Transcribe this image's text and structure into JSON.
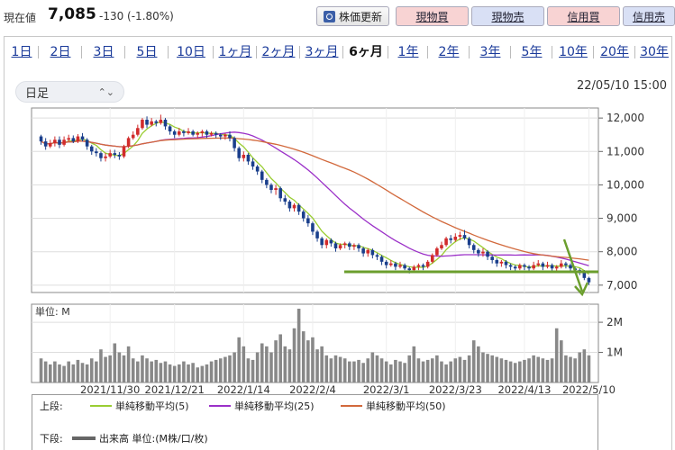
{
  "header": {
    "price_label": "現在値",
    "price_value": "7,085",
    "price_change": "-130 (-1.80%)",
    "refresh_label": "株価更新",
    "buttons": [
      {
        "label": "現物買",
        "kind": "buy"
      },
      {
        "label": "現物売",
        "kind": "sell"
      },
      {
        "label": "信用買",
        "kind": "buy"
      },
      {
        "label": "信用売",
        "kind": "sell"
      }
    ]
  },
  "tabs": [
    "1日",
    "2日",
    "3日",
    "5日",
    "10日",
    "1ヶ月",
    "2ヶ月",
    "3ヶ月",
    "6ヶ月",
    "1年",
    "2年",
    "3年",
    "5年",
    "10年",
    "20年",
    "30年"
  ],
  "active_tab": "6ヶ月",
  "controls": {
    "interval_value": "日足",
    "timestamp": "22/05/10 15:00"
  },
  "colors": {
    "up_candle": "#d12b2b",
    "down_candle": "#1a3f8c",
    "ma5": "#9acd32",
    "ma25": "#9b30c8",
    "ma50": "#d2693c",
    "volume": "#888888",
    "annotation": "#6b9e2d"
  },
  "chart_data": {
    "type": "candlestick",
    "price_axis": {
      "ticks": [
        "12,000",
        "11,000",
        "10,000",
        "9,000",
        "8,000",
        "7,000"
      ],
      "range": [
        6780,
        12300
      ]
    },
    "volume_axis": {
      "unit_label": "単位: M",
      "ticks": [
        "2M",
        "1M"
      ],
      "range": [
        0,
        2.6
      ]
    },
    "x_tick_labels": [
      "2021/11/30",
      "2021/12/21",
      "2022/1/14",
      "2022/2/4",
      "2022/3/1",
      "2022/3/23",
      "2022/4/13",
      "2022/5/10"
    ],
    "x_tick_index": [
      15,
      29,
      44,
      59,
      75,
      90,
      105,
      121
    ],
    "ohlc": [
      [
        11450,
        11300,
        11500,
        11200
      ],
      [
        11300,
        11150,
        11400,
        11050
      ],
      [
        11150,
        11250,
        11350,
        11100
      ],
      [
        11250,
        11350,
        11450,
        11150
      ],
      [
        11350,
        11200,
        11450,
        11100
      ],
      [
        11200,
        11350,
        11450,
        11150
      ],
      [
        11350,
        11400,
        11500,
        11300
      ],
      [
        11400,
        11300,
        11480,
        11250
      ],
      [
        11300,
        11450,
        11520,
        11250
      ],
      [
        11450,
        11350,
        11550,
        11300
      ],
      [
        11350,
        11150,
        11400,
        11050
      ],
      [
        11150,
        11000,
        11200,
        10900
      ],
      [
        11000,
        10950,
        11100,
        10850
      ],
      [
        10950,
        10800,
        11000,
        10700
      ],
      [
        10800,
        10850,
        10950,
        10700
      ],
      [
        10850,
        10950,
        11050,
        10800
      ],
      [
        10950,
        10900,
        11050,
        10800
      ],
      [
        10900,
        10850,
        10980,
        10750
      ],
      [
        10850,
        11150,
        11200,
        10800
      ],
      [
        11150,
        11400,
        11450,
        11100
      ],
      [
        11400,
        11500,
        11600,
        11350
      ],
      [
        11500,
        11700,
        11800,
        11450
      ],
      [
        11700,
        11950,
        12000,
        11650
      ],
      [
        11950,
        11800,
        12050,
        11700
      ],
      [
        11800,
        11900,
        12000,
        11750
      ],
      [
        11900,
        11850,
        11950,
        11750
      ],
      [
        11850,
        11950,
        12100,
        11800
      ],
      [
        11950,
        11750,
        12000,
        11650
      ],
      [
        11750,
        11600,
        11800,
        11500
      ],
      [
        11600,
        11500,
        11650,
        11400
      ],
      [
        11500,
        11600,
        11700,
        11450
      ],
      [
        11600,
        11550,
        11650,
        11450
      ],
      [
        11550,
        11600,
        11700,
        11500
      ],
      [
        11600,
        11500,
        11650,
        11450
      ],
      [
        11500,
        11550,
        11600,
        11400
      ],
      [
        11550,
        11600,
        11650,
        11450
      ],
      [
        11600,
        11500,
        11650,
        11400
      ],
      [
        11500,
        11550,
        11600,
        11450
      ],
      [
        11550,
        11500,
        11600,
        11400
      ],
      [
        11500,
        11450,
        11550,
        11350
      ],
      [
        11450,
        11500,
        11550,
        11350
      ],
      [
        11500,
        11400,
        11600,
        11300
      ],
      [
        11400,
        11100,
        11450,
        11000
      ],
      [
        11100,
        10800,
        11150,
        10700
      ],
      [
        10800,
        10900,
        11000,
        10700
      ],
      [
        10900,
        10700,
        10950,
        10600
      ],
      [
        10700,
        10550,
        10800,
        10450
      ],
      [
        10550,
        10400,
        10600,
        10300
      ],
      [
        10400,
        10150,
        10450,
        10050
      ],
      [
        10150,
        10000,
        10200,
        9900
      ],
      [
        10000,
        9850,
        10050,
        9750
      ],
      [
        9850,
        9900,
        10000,
        9700
      ],
      [
        9900,
        9600,
        9950,
        9500
      ],
      [
        9600,
        9500,
        9700,
        9400
      ],
      [
        9500,
        9300,
        9550,
        9200
      ],
      [
        9300,
        9400,
        9450,
        9200
      ],
      [
        9400,
        9200,
        9450,
        9100
      ],
      [
        9200,
        9000,
        9250,
        8900
      ],
      [
        9000,
        8850,
        9100,
        8750
      ],
      [
        8850,
        8600,
        8900,
        8500
      ],
      [
        8600,
        8400,
        8650,
        8300
      ],
      [
        8400,
        8200,
        8450,
        8100
      ],
      [
        8200,
        8350,
        8400,
        8100
      ],
      [
        8350,
        8250,
        8400,
        8150
      ],
      [
        8250,
        8100,
        8300,
        8000
      ],
      [
        8100,
        8200,
        8250,
        8050
      ],
      [
        8200,
        8250,
        8300,
        8100
      ],
      [
        8250,
        8150,
        8300,
        8050
      ],
      [
        8150,
        8200,
        8250,
        8050
      ],
      [
        8200,
        8100,
        8250,
        8000
      ],
      [
        8100,
        7950,
        8150,
        7850
      ],
      [
        7950,
        8050,
        8100,
        7850
      ],
      [
        8050,
        7900,
        8100,
        7800
      ],
      [
        7900,
        7850,
        7950,
        7750
      ],
      [
        7850,
        7700,
        7900,
        7600
      ],
      [
        7700,
        7600,
        7750,
        7500
      ],
      [
        7600,
        7650,
        7750,
        7550
      ],
      [
        7650,
        7550,
        7700,
        7450
      ],
      [
        7550,
        7600,
        7700,
        7500
      ],
      [
        7600,
        7500,
        7650,
        7450
      ],
      [
        7500,
        7450,
        7550,
        7350
      ],
      [
        7450,
        7550,
        7600,
        7400
      ],
      [
        7550,
        7600,
        7650,
        7450
      ],
      [
        7600,
        7550,
        7650,
        7450
      ],
      [
        7550,
        7700,
        7750,
        7500
      ],
      [
        7700,
        7900,
        7950,
        7650
      ],
      [
        7900,
        8100,
        8150,
        7850
      ],
      [
        8100,
        8200,
        8300,
        8050
      ],
      [
        8200,
        8400,
        8450,
        8150
      ],
      [
        8400,
        8350,
        8500,
        8250
      ],
      [
        8350,
        8450,
        8550,
        8300
      ],
      [
        8450,
        8500,
        8600,
        8350
      ],
      [
        8500,
        8400,
        8650,
        8350
      ],
      [
        8400,
        8200,
        8450,
        8100
      ],
      [
        8200,
        8050,
        8250,
        7950
      ],
      [
        8050,
        7950,
        8100,
        7850
      ],
      [
        7950,
        8000,
        8100,
        7850
      ],
      [
        8000,
        7850,
        8050,
        7750
      ],
      [
        7850,
        7750,
        7900,
        7650
      ],
      [
        7750,
        7650,
        7800,
        7550
      ],
      [
        7650,
        7700,
        7750,
        7550
      ],
      [
        7700,
        7600,
        7750,
        7500
      ],
      [
        7600,
        7550,
        7650,
        7450
      ],
      [
        7550,
        7500,
        7600,
        7400
      ],
      [
        7500,
        7600,
        7650,
        7450
      ],
      [
        7600,
        7550,
        7650,
        7450
      ],
      [
        7550,
        7500,
        7600,
        7400
      ],
      [
        7500,
        7600,
        7700,
        7450
      ],
      [
        7600,
        7650,
        7750,
        7550
      ],
      [
        7650,
        7550,
        7700,
        7450
      ],
      [
        7550,
        7600,
        7700,
        7500
      ],
      [
        7600,
        7500,
        7650,
        7400
      ],
      [
        7500,
        7550,
        7600,
        7400
      ],
      [
        7550,
        7650,
        7750,
        7500
      ],
      [
        7650,
        7600,
        7700,
        7500
      ],
      [
        7600,
        7500,
        7650,
        7400
      ],
      [
        7500,
        7450,
        7550,
        7350
      ],
      [
        7450,
        7400,
        7500,
        7300
      ],
      [
        7400,
        7215,
        7450,
        7150
      ],
      [
        7215,
        7085,
        7250,
        7000
      ]
    ],
    "volume_m": [
      0.8,
      0.7,
      0.6,
      0.7,
      0.6,
      0.55,
      0.7,
      0.6,
      0.75,
      0.65,
      0.6,
      0.8,
      0.7,
      1.1,
      0.85,
      0.9,
      1.3,
      1.0,
      0.9,
      1.2,
      0.8,
      0.7,
      0.9,
      0.8,
      0.7,
      0.75,
      0.65,
      0.7,
      0.6,
      0.55,
      0.6,
      0.7,
      0.6,
      0.65,
      0.5,
      0.55,
      0.6,
      0.7,
      0.75,
      0.8,
      0.85,
      0.9,
      1.0,
      1.5,
      1.2,
      0.8,
      0.75,
      1.0,
      1.3,
      1.2,
      1.0,
      1.4,
      1.6,
      1.2,
      1.1,
      1.8,
      2.45,
      1.7,
      1.4,
      1.5,
      1.1,
      1.2,
      0.9,
      0.8,
      0.9,
      0.85,
      0.8,
      0.7,
      0.7,
      0.75,
      0.65,
      0.8,
      1.0,
      0.9,
      0.8,
      0.7,
      0.6,
      0.75,
      0.7,
      0.65,
      0.9,
      1.2,
      0.8,
      0.7,
      0.75,
      0.8,
      0.9,
      0.7,
      0.6,
      0.7,
      0.8,
      0.85,
      0.75,
      0.9,
      1.4,
      1.2,
      1.0,
      0.95,
      0.9,
      0.85,
      0.8,
      0.75,
      0.7,
      0.65,
      0.7,
      0.75,
      0.8,
      0.9,
      0.85,
      0.8,
      0.75,
      0.8,
      1.8,
      1.4,
      0.9,
      0.85,
      0.8,
      1.0,
      1.1,
      0.9
    ],
    "annotation": {
      "support_level": 7400
    }
  },
  "legend": {
    "upper_label": "上段:",
    "lower_label": "下段:",
    "items": [
      {
        "label": "単純移動平均(5)",
        "color": "#9acd32"
      },
      {
        "label": "単純移動平均(25)",
        "color": "#9b30c8"
      },
      {
        "label": "単純移動平均(50)",
        "color": "#d2693c"
      }
    ],
    "volume_label": "出来高 単位:(M株/口/枚)"
  }
}
